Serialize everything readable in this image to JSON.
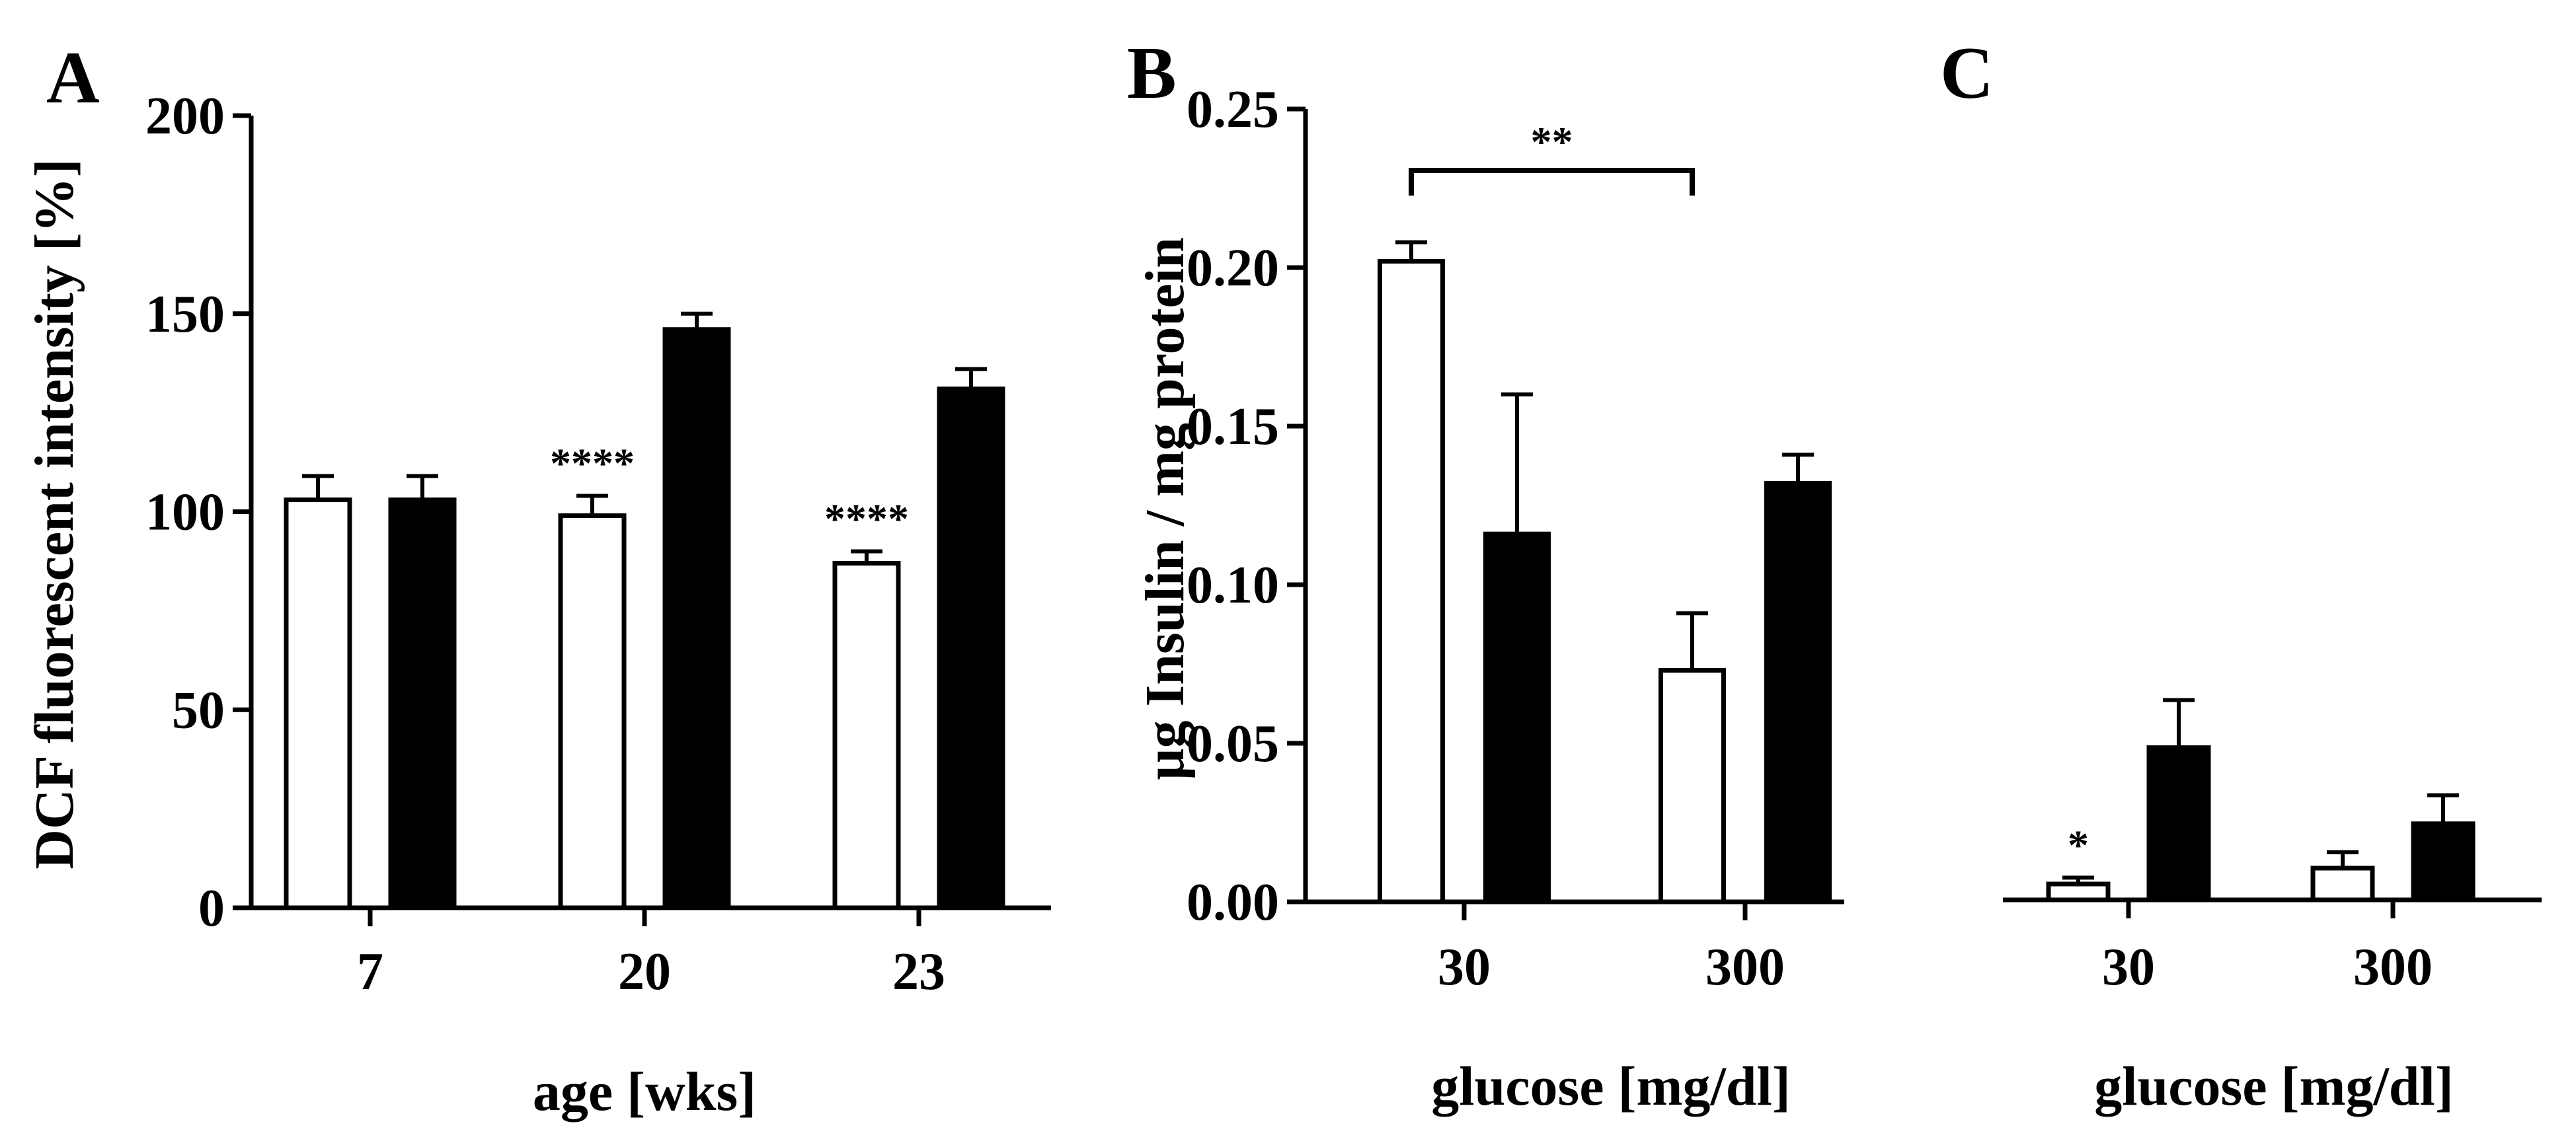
{
  "chart_data": [
    {
      "panel": "A",
      "type": "bar",
      "categories": [
        "7",
        "20",
        "23"
      ],
      "series": [
        {
          "name": "open",
          "fill": "#ffffff",
          "values": [
            103,
            99,
            87
          ],
          "errors": [
            6,
            5,
            3
          ]
        },
        {
          "name": "filled",
          "fill": "#000000",
          "values": [
            103,
            146,
            131
          ],
          "errors": [
            6,
            4,
            5
          ]
        }
      ],
      "ylim": [
        0,
        200
      ],
      "yticks": [
        "0",
        "50",
        "100",
        "150",
        "200"
      ],
      "ytick_values": [
        0,
        50,
        100,
        150,
        200
      ],
      "xlabel": "age [wks]",
      "ylabel": "DCF fluorescent intensity [%]",
      "annotations": [
        {
          "text": "****",
          "category": "20"
        },
        {
          "text": "****",
          "category": "23"
        }
      ]
    },
    {
      "panel": "B",
      "type": "bar",
      "categories": [
        "30",
        "300"
      ],
      "series": [
        {
          "name": "open",
          "fill": "#ffffff",
          "values": [
            0.202,
            0.073
          ],
          "errors": [
            0.006,
            0.018
          ]
        },
        {
          "name": "filled",
          "fill": "#000000",
          "values": [
            0.116,
            0.132
          ],
          "errors": [
            0.044,
            0.009
          ]
        }
      ],
      "ylim": [
        0,
        0.25
      ],
      "yticks": [
        "0.00",
        "0.05",
        "0.10",
        "0.15",
        "0.20",
        "0.25"
      ],
      "ytick_values": [
        0,
        0.05,
        0.1,
        0.15,
        0.2,
        0.25
      ],
      "xlabel": "glucose [mg/dl]",
      "ylabel": "µg  Insulin  / mg protein",
      "annotations": [
        {
          "text": "**",
          "type": "bracket",
          "from": "30",
          "to": "300"
        }
      ]
    },
    {
      "panel": "C",
      "type": "bar",
      "categories": [
        "30",
        "300"
      ],
      "series": [
        {
          "name": "open",
          "fill": "#ffffff",
          "values": [
            0.005,
            0.01
          ],
          "errors": [
            0.002,
            0.005
          ]
        },
        {
          "name": "filled",
          "fill": "#000000",
          "values": [
            0.048,
            0.024
          ],
          "errors": [
            0.015,
            0.009
          ]
        }
      ],
      "ylim": [
        0,
        0.25
      ],
      "yticks": [],
      "ytick_values": [],
      "xlabel": "glucose [mg/dl]",
      "ylabel": "",
      "annotations": [
        {
          "text": "*",
          "category": "30"
        }
      ]
    }
  ]
}
